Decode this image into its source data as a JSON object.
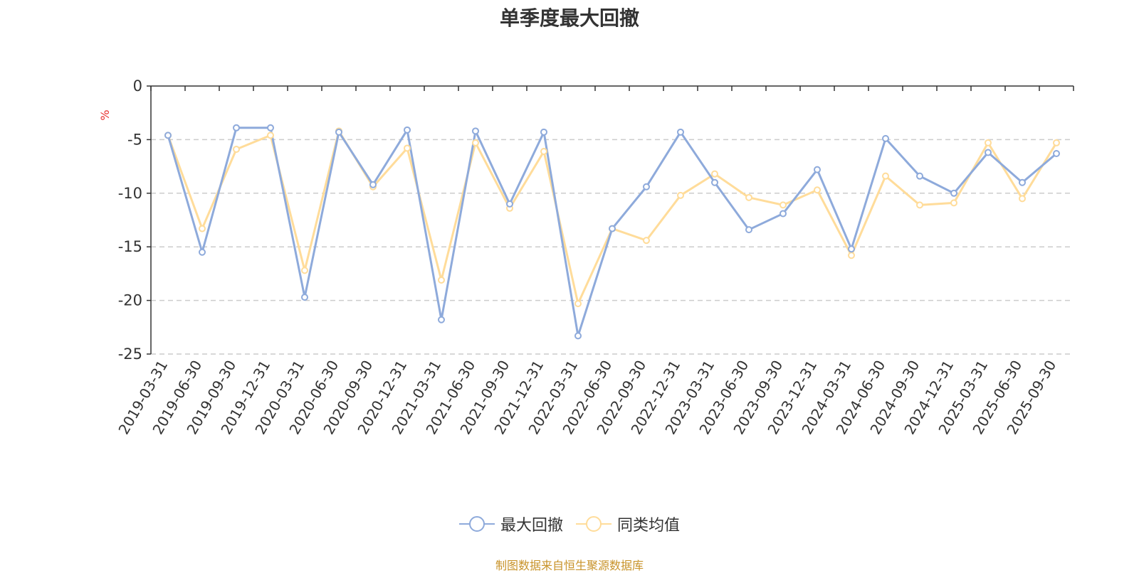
{
  "chart_data": {
    "type": "line",
    "title": "单季度最大回撤",
    "ylabel": "%",
    "ylim": [
      -25,
      0
    ],
    "yticks": [
      0,
      -5,
      -10,
      -15,
      -20,
      -25
    ],
    "grid": true,
    "legend_position": "bottom",
    "categories": [
      "2019-03-31",
      "2019-06-30",
      "2019-09-30",
      "2019-12-31",
      "2020-03-31",
      "2020-06-30",
      "2020-09-30",
      "2020-12-31",
      "2021-03-31",
      "2021-06-30",
      "2021-09-30",
      "2021-12-31",
      "2022-03-31",
      "2022-06-30",
      "2022-09-30",
      "2022-12-31",
      "2023-03-31",
      "2023-06-30",
      "2023-09-30",
      "2023-12-31",
      "2024-03-31",
      "2024-06-30",
      "2024-09-30",
      "2024-12-31",
      "2025-03-31",
      "2025-06-30",
      "2025-09-30"
    ],
    "series": [
      {
        "name": "最大回撤",
        "color": "#8eaadb",
        "values": [
          -4.6,
          -15.5,
          -3.9,
          -3.9,
          -19.7,
          -4.3,
          -9.2,
          -4.1,
          -21.8,
          -4.2,
          -11.0,
          -4.3,
          -23.3,
          -13.3,
          -9.4,
          -4.3,
          -9.0,
          -13.4,
          -11.9,
          -7.8,
          -15.2,
          -4.9,
          -8.4,
          -10.0,
          -6.2,
          -9.0,
          -6.3
        ]
      },
      {
        "name": "同类均值",
        "color": "#ffdc9a",
        "values": [
          -4.6,
          -13.3,
          -5.9,
          -4.6,
          -17.2,
          -4.2,
          -9.4,
          -5.8,
          -18.1,
          -5.3,
          -11.4,
          -6.1,
          -20.3,
          -13.3,
          -14.4,
          -10.2,
          -8.2,
          -10.4,
          -11.1,
          -9.7,
          -15.8,
          -8.4,
          -11.1,
          -10.9,
          -5.3,
          -10.5,
          -5.3
        ]
      }
    ],
    "source": "制图数据来自恒生聚源数据库"
  }
}
